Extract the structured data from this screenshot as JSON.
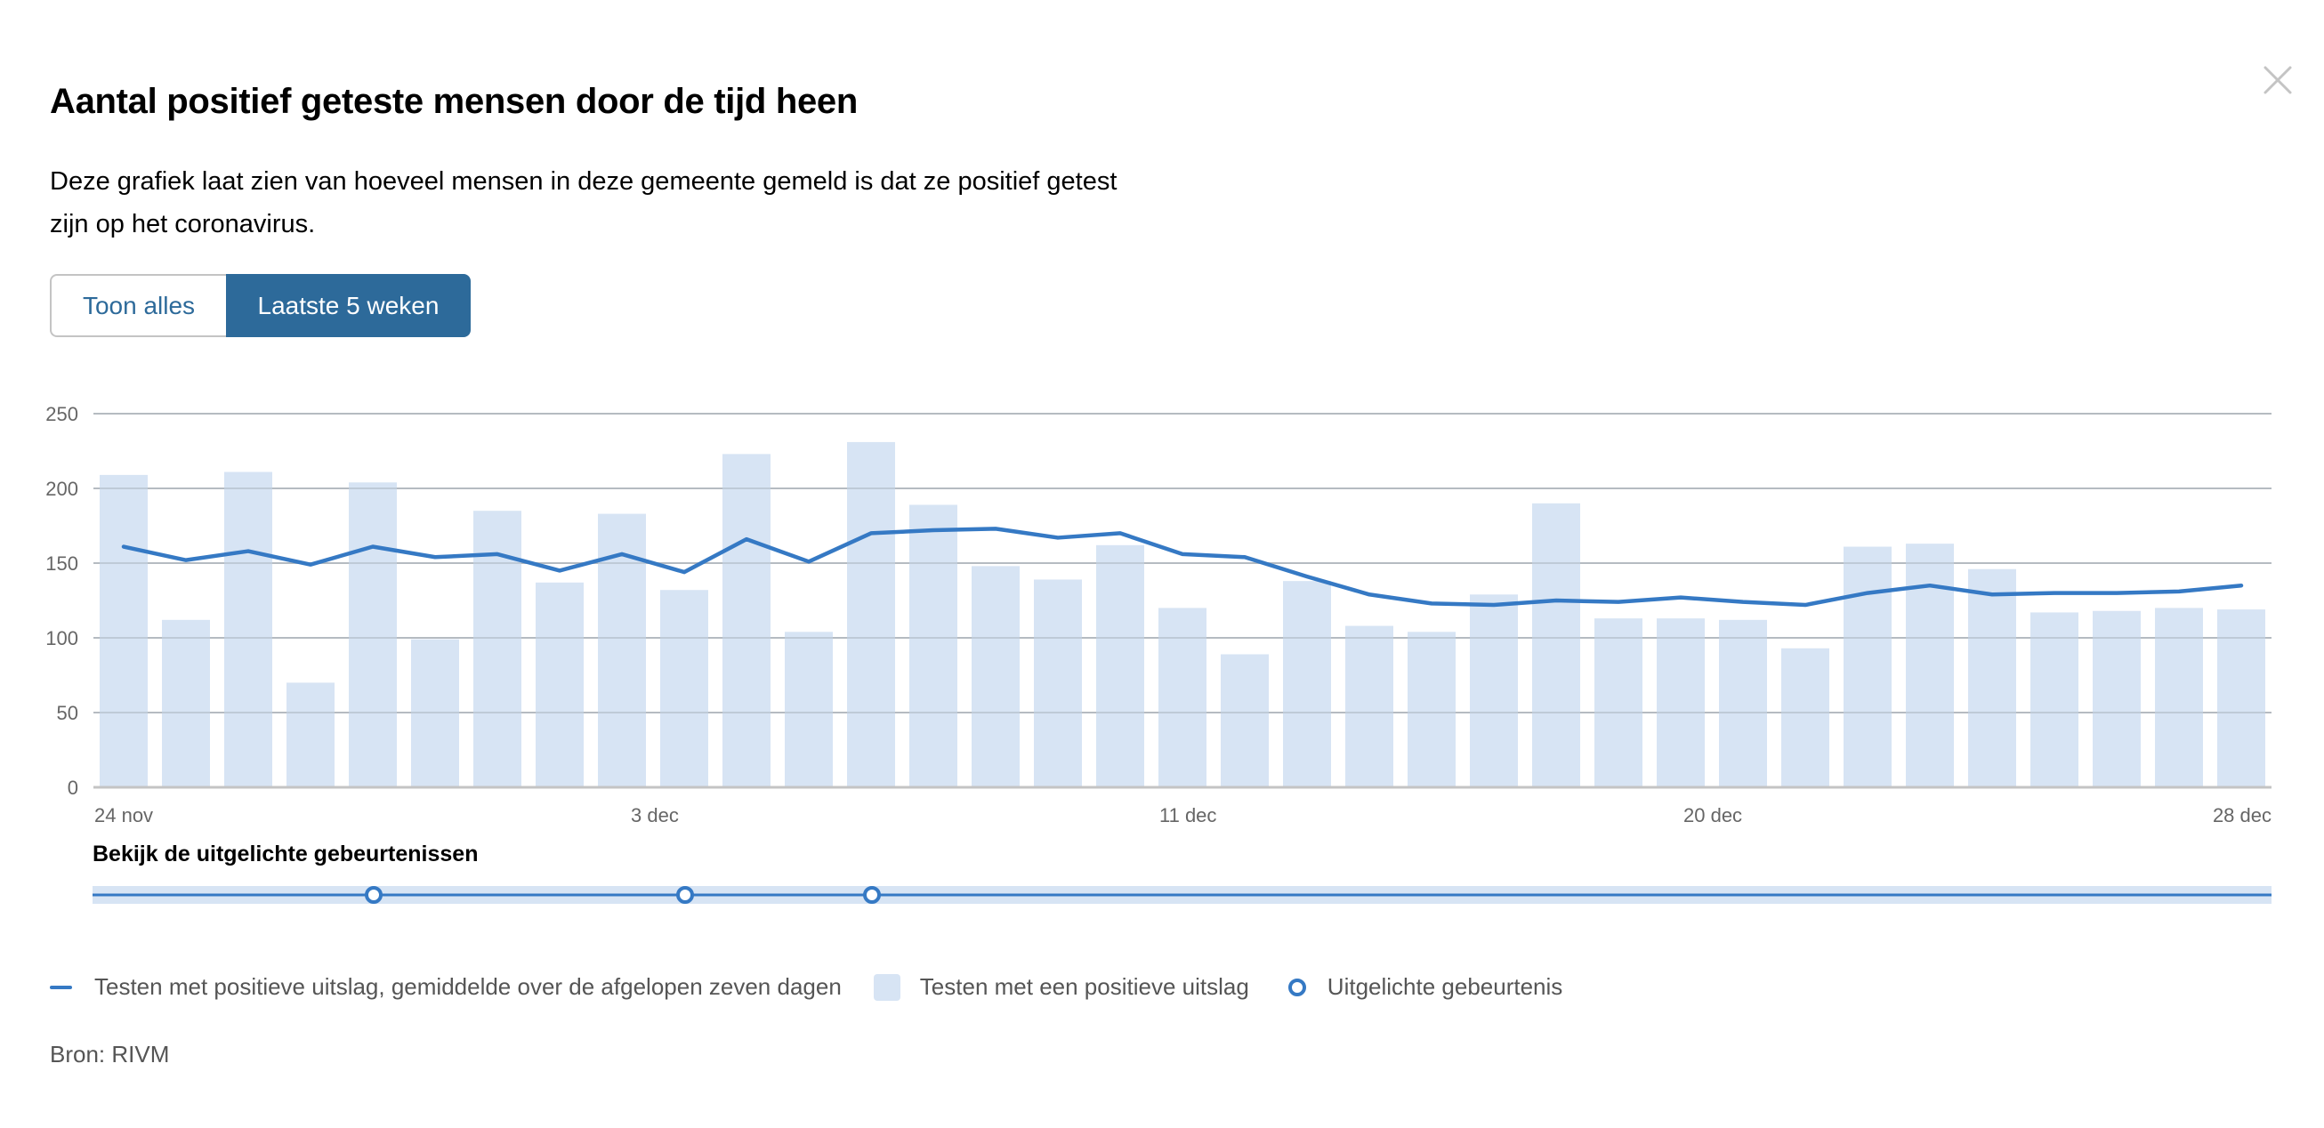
{
  "header": {
    "title": "Aantal positief geteste mensen door de tijd heen",
    "description": "Deze grafiek laat zien van hoeveel mensen in deze gemeente gemeld is dat ze positief getest zijn op het coronavirus.",
    "close_icon": "close-icon"
  },
  "toggle": {
    "options": [
      {
        "label": "Toon alles",
        "active": false
      },
      {
        "label": "Laatste 5 weken",
        "active": true
      }
    ]
  },
  "events": {
    "title": "Bekijk de uitgelichte gebeurtenissen",
    "markers": [
      "28 nov",
      "3 dec",
      "6 dec"
    ]
  },
  "legend": {
    "items": [
      {
        "icon": "line-icon",
        "label": "Testen met positieve uitslag, gemiddelde over de afgelopen zeven dagen"
      },
      {
        "icon": "bar-icon",
        "label": "Testen met een positieve uitslag"
      },
      {
        "icon": "circle-icon",
        "label": "Uitgelichte gebeurtenis"
      }
    ]
  },
  "source": "Bron: RIVM",
  "colors": {
    "bar": "#d7e4f4",
    "line": "#3579c4",
    "active_button": "#2d6a9a",
    "gridline": "#c4c4c4",
    "axis_text": "#666666"
  },
  "chart_data": {
    "type": "bar",
    "title": "Aantal positief geteste mensen door de tijd heen",
    "xlabel": "",
    "ylabel": "",
    "ylim": [
      0,
      250
    ],
    "yticks": [
      0,
      50,
      100,
      150,
      200,
      250
    ],
    "xtick_labels": [
      "24 nov",
      "3 dec",
      "11 dec",
      "20 dec",
      "28 dec"
    ],
    "grid": true,
    "legend_position": "bottom",
    "categories": [
      "24 nov",
      "25 nov",
      "26 nov",
      "27 nov",
      "28 nov",
      "29 nov",
      "30 nov",
      "1 dec",
      "2 dec",
      "3 dec",
      "4 dec",
      "5 dec",
      "6 dec",
      "7 dec",
      "8 dec",
      "9 dec",
      "10 dec",
      "11 dec",
      "12 dec",
      "13 dec",
      "14 dec",
      "15 dec",
      "16 dec",
      "17 dec",
      "18 dec",
      "19 dec",
      "20 dec",
      "21 dec",
      "22 dec",
      "23 dec",
      "24 dec",
      "25 dec",
      "26 dec",
      "27 dec",
      "28 dec"
    ],
    "series": [
      {
        "name": "Testen met een positieve uitslag",
        "type": "bar",
        "values": [
          209,
          112,
          211,
          70,
          204,
          99,
          185,
          137,
          183,
          132,
          223,
          104,
          231,
          189,
          148,
          139,
          162,
          120,
          89,
          138,
          108,
          104,
          129,
          190,
          113,
          113,
          112,
          93,
          161,
          163,
          146,
          117,
          118,
          120,
          119
        ]
      },
      {
        "name": "Testen met positieve uitslag, gemiddelde over de afgelopen zeven dagen",
        "type": "line",
        "values": [
          161,
          152,
          158,
          149,
          161,
          154,
          156,
          145,
          156,
          144,
          166,
          151,
          170,
          172,
          173,
          167,
          170,
          156,
          154,
          141,
          129,
          123,
          122,
          125,
          124,
          127,
          124,
          122,
          130,
          135,
          129,
          130,
          130,
          131,
          135
        ]
      }
    ],
    "events": [
      {
        "label": "Uitgelichte gebeurtenis",
        "date": "28 nov"
      },
      {
        "label": "Uitgelichte gebeurtenis",
        "date": "3 dec"
      },
      {
        "label": "Uitgelichte gebeurtenis",
        "date": "6 dec"
      }
    ]
  }
}
